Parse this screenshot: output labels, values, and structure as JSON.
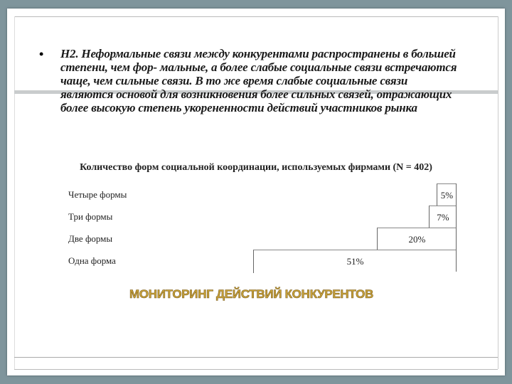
{
  "slide": {
    "bullet": "•",
    "body_text": "Н2. Неформальные связи между конкурентами распространены в большей степени, чем фор- мальные, а более слабые социальные связи встречаются чаще, чем сильные связи. В то же время слабые социальные связи являются основой для возникновения более сильных связей, отражающих более высокую степень укорененности действий участников рынка",
    "heading": "МОНИТОРИНГ ДЕЙСТВИЙ КОНКУРЕНТОВ",
    "heading_color": "#c9a33a"
  },
  "chart_data": {
    "type": "bar",
    "orientation": "horizontal",
    "title": "Количество форм социальной координации, используемых фирмами (N = 402)",
    "categories": [
      "Четыре формы",
      "Три формы",
      "Две формы",
      "Одна форма"
    ],
    "values": [
      5,
      7,
      20,
      51
    ],
    "data_labels": [
      "5%",
      "7%",
      "20%",
      "51%"
    ],
    "unit": "%",
    "bar_color": "#ffffff",
    "grid": false,
    "legend": "none"
  }
}
